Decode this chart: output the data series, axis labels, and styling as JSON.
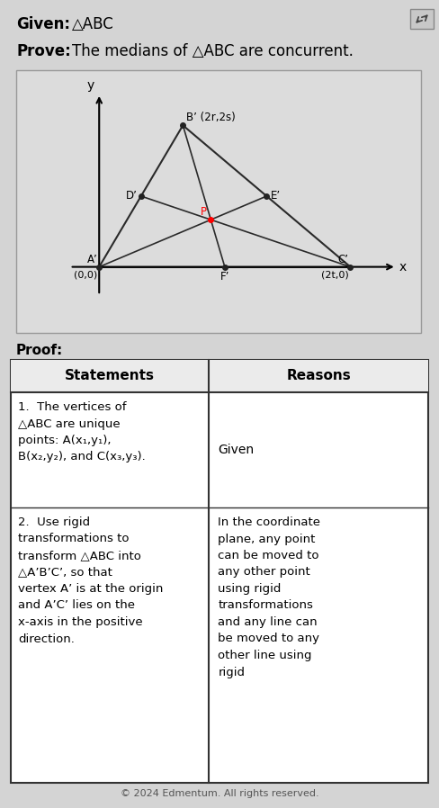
{
  "bg_color": "#d4d4d4",
  "given_text": "Given:",
  "given_triangle": "△ABC",
  "prove_text": "Prove:",
  "prove_body": "The medians of △ABC are concurrent.",
  "proof_label": "Proof:",
  "table_header": [
    "Statements",
    "Reasons"
  ],
  "table_rows": [
    {
      "statement": "1.  The vertices of\n△ABC are unique\npoints: A(x₁,y₁),\nB(x₂,y₂), and C(x₃,y₃).",
      "reason": "Given"
    },
    {
      "statement": "2.  Use rigid\ntransformations to\ntransform △ABC into\n△A’B’C’, so that\nvertex A’ is at the origin\nand A’C’ lies on the\nx-axis in the positive\ndirection.",
      "reason": "In the coordinate\nplane, any point\ncan be moved to\nany other point\nusing rigid\ntransformations\nand any line can\nbe moved to any\nother line using\nrigid"
    }
  ],
  "graph": {
    "A": [
      0,
      0
    ],
    "B": [
      2,
      4
    ],
    "C": [
      6,
      0
    ]
  },
  "footer": "© 2024 Edmentum. All rights reserved."
}
